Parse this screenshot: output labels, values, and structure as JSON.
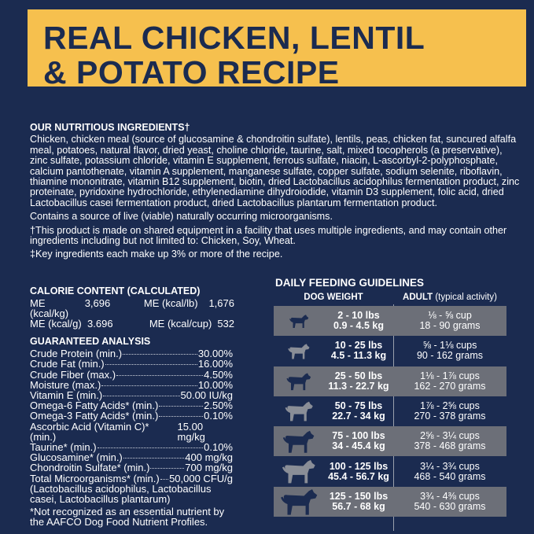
{
  "title": {
    "line1": "REAL CHICKEN, LENTIL",
    "line2": "& POTATO RECIPE"
  },
  "ingredients": {
    "heading": "OUR NUTRITIOUS INGREDIENTS†",
    "text": "Chicken, chicken meal (source of glucosamine & chondroitin sulfate), lentils, peas, chicken fat, suncured alfalfa meal, potatoes, natural flavor, dried yeast, choline chloride, taurine, salt, mixed tocopherols (a preservative), zinc sulfate, potassium chloride, vitamin E supplement, ferrous sulfate, niacin, L-ascorbyl-2-polyphosphate, calcium pantothenate, vitamin A supplement, manganese sulfate, copper sulfate, sodium selenite, riboflavin, thiamine mononitrate,  vitamin B12 supplement,  biotin, dried Lactobacillus acidophilus fermentation product, zinc proteinate, pyridoxine hydrochloride, ethylenediamine dihydroiodide, vitamin D3 supplement, folic acid, dried Lactobacillus casei fermentation product, dried Lactobacillus plantarum fermentation product.",
    "live": "Contains a source of live (viable) naturally occurring microorganisms.",
    "dagger": "†This product is made on shared equipment in a facility that uses multiple ingredients, and may contain other ingredients including but not limited to: Chicken, Soy, Wheat.",
    "key": "‡Key ingredients each make up 3% or more of the recipe."
  },
  "calorie": {
    "heading": "CALORIE CONTENT (CALCULATED)",
    "rows": [
      {
        "k1": "ME (kcal/kg)",
        "v1": "3,696",
        "k2": "ME (kcal/lb)",
        "v2": "1,676"
      },
      {
        "k1": "ME (kcal/g)",
        "v1": "3.696",
        "k2": "ME (kcal/cup)",
        "v2": "532"
      }
    ]
  },
  "analysis": {
    "heading": "GUARANTEED ANALYSIS",
    "rows": [
      {
        "k": "Crude Protein (min.)",
        "v": "30.00%"
      },
      {
        "k": "Crude Fat (min.)",
        "v": "16.00%"
      },
      {
        "k": "Crude Fiber (max.)",
        "v": "4.50%"
      },
      {
        "k": "Moisture (max.)",
        "v": "10.00%"
      },
      {
        "k": "Vitamin E (min.)",
        "v": "50.00 IU/kg"
      },
      {
        "k": "Omega-6 Fatty Acids* (min.)",
        "v": "2.50%"
      },
      {
        "k": "Omega-3 Fatty Acids* (min.)",
        "v": "0.10%"
      },
      {
        "k": "Ascorbic Acid (Vitamin C)* (min.)",
        "v": "15.00 mg/kg"
      },
      {
        "k": "Taurine* (min.)",
        "v": "0.10%"
      },
      {
        "k": "Glucosamine* (min.)",
        "v": "400 mg/kg"
      },
      {
        "k": "Chondroitin Sulfate* (min.)",
        "v": "700 mg/kg"
      },
      {
        "k": "Total Microorganisms* (min.)",
        "v": "50,000 CFU/g"
      }
    ],
    "strains": "(Lactobacillus acidophilus, Lactobacillus casei, Lactobacillus plantarum)",
    "note": "*Not recognized as an essential nutrient by the AAFCO Dog Food Nutrient Profiles."
  },
  "feeding": {
    "heading": "DAILY FEEDING GUIDELINES",
    "col1": "DOG WEIGHT",
    "col2_bold": "ADULT",
    "col2_rest": " (typical activity)",
    "colors": {
      "gray": "#6c6f78",
      "navy": "#1b2b50"
    },
    "rows": [
      {
        "icon": "small-dog-icon",
        "lbs": "2 - 10 lbs",
        "kg": "0.9 - 4.5 kg",
        "cups": "⅛ - ⅝ cup",
        "grams": "18 - 90 grams"
      },
      {
        "icon": "bulldog-icon",
        "lbs": "10 - 25 lbs",
        "kg": "4.5 - 11.3 kg",
        "cups": "⅝ - 1⅛ cups",
        "grams": "90 - 162 grams"
      },
      {
        "icon": "medium-dog-icon",
        "lbs": "25 - 50 lbs",
        "kg": "11.3 - 22.7 kg",
        "cups": "1⅛ - 1⅞ cups",
        "grams": "162 - 270 grams"
      },
      {
        "icon": "large-dog-icon",
        "lbs": "50 - 75 lbs",
        "kg": "22.7 - 34 kg",
        "cups": "1⅞ - 2⅝ cups",
        "grams": "270 - 378 grams"
      },
      {
        "icon": "great-dane-icon",
        "lbs": "75 - 100 lbs",
        "kg": "34 - 45.4 kg",
        "cups": "2⅝ - 3¼ cups",
        "grams": "378 - 468 grams"
      },
      {
        "icon": "retriever-icon",
        "lbs": "100 - 125 lbs",
        "kg": "45.4 - 56.7 kg",
        "cups": "3¼ - 3¾ cups",
        "grams": "468 - 540 grams"
      },
      {
        "icon": "giant-dog-icon",
        "lbs": "125 - 150 lbs",
        "kg": "56.7 - 68 kg",
        "cups": "3¾ - 4⅜ cups",
        "grams": "540 - 630 grams"
      }
    ]
  }
}
